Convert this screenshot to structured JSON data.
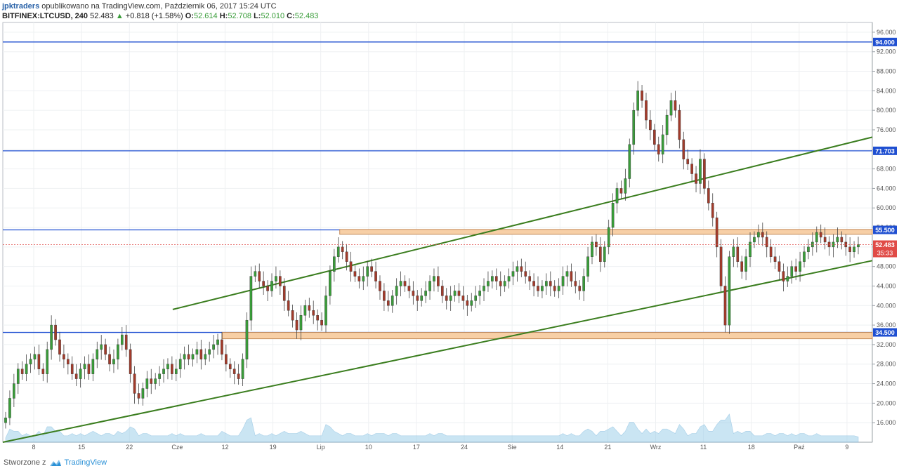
{
  "header": {
    "author": "jpktraders",
    "published_text": "opublikowano na TradingView.com, Październik 06, 2017 15:24 UTC",
    "symbol": "BITFINEX:LTCUSD, 240",
    "last_price": "52.483",
    "change_arrow": "▲",
    "change": "+0.818 (+1.58%)",
    "o_label": "O:",
    "o_value": "52.614",
    "h_label": "H:",
    "h_value": "52.708",
    "l_label": "L:",
    "l_value": "52.010",
    "c_label": "C:",
    "c_value": "52.483"
  },
  "footer": {
    "created_with": "Stworzone z",
    "brand": "TradingView",
    "logo_icon": "tradingview-logo-icon"
  },
  "colors": {
    "up": "#3a9d3a",
    "down": "#a33b2b",
    "level_line": "#1f4fd1",
    "channel": "#3a7d1e",
    "zone_fill": "#f7cfa6",
    "zone_stroke": "#c48a5a",
    "price_tag": "#e04b47"
  },
  "chart_data": {
    "type": "candlestick",
    "title": "",
    "ylim": [
      12,
      98
    ],
    "y_ticks": [
      "96.000",
      "92.000",
      "88.000",
      "84.000",
      "80.000",
      "76.000",
      "72.000",
      "68.000",
      "64.000",
      "60.000",
      "56.000",
      "52.000",
      "48.000",
      "44.000",
      "40.000",
      "36.000",
      "32.000",
      "28.000",
      "24.000",
      "20.000",
      "16.000"
    ],
    "x_ticks": [
      "8",
      "15",
      "22",
      "Cze",
      "12",
      "19",
      "Lip",
      "10",
      "17",
      "24",
      "Sie",
      "14",
      "21",
      "Wrz",
      "11",
      "18",
      "Paź",
      "9"
    ],
    "horizontal_levels": [
      {
        "label": "94.000",
        "value": 94.0
      },
      {
        "label": "71.703",
        "value": 71.703
      },
      {
        "label": "55.500",
        "value": 55.5
      },
      {
        "label": "34.500",
        "value": 34.5
      }
    ],
    "current_price": {
      "label": "52.483",
      "value": 52.483,
      "countdown": "35:33"
    },
    "zones": [
      {
        "from": 54.6,
        "to": 55.6,
        "start": "Lip"
      },
      {
        "from": 33.2,
        "to": 34.5,
        "start": "12"
      }
    ],
    "channel_lines": [
      {
        "name": "upper",
        "points": [
          [
            8.5,
            39.2
          ],
          [
            43.5,
            74.5
          ]
        ]
      },
      {
        "name": "lower",
        "points": [
          [
            0,
            12.0
          ],
          [
            43.5,
            49.2
          ]
        ]
      }
    ],
    "closes": [
      17,
      21,
      24,
      27,
      26,
      28,
      29,
      30,
      27,
      26,
      31,
      36,
      33,
      30,
      29,
      28,
      26,
      25,
      27,
      28,
      26,
      29,
      31,
      32,
      30,
      28,
      29,
      32,
      34,
      31,
      26,
      22,
      21,
      23,
      25,
      24,
      25,
      26,
      27,
      28,
      26,
      27,
      29,
      30,
      29,
      30,
      31,
      29,
      30,
      31,
      32,
      33,
      30,
      28,
      27,
      26,
      25,
      29,
      37,
      46,
      47,
      45,
      44,
      43,
      45,
      46,
      44,
      41,
      39,
      37,
      35,
      38,
      40,
      39,
      38,
      37,
      36,
      42,
      47,
      50,
      52,
      51,
      49,
      47,
      46,
      45,
      46,
      48,
      47,
      45,
      43,
      41,
      40,
      42,
      44,
      45,
      44,
      43,
      42,
      41,
      42,
      43,
      45,
      46,
      44,
      42,
      41,
      42,
      43,
      42,
      41,
      40,
      41,
      42,
      43,
      44,
      45,
      46,
      45,
      44,
      45,
      46,
      47,
      48,
      47,
      46,
      45,
      44,
      43,
      44,
      45,
      44,
      43,
      44,
      46,
      47,
      45,
      44,
      43,
      46,
      50,
      53,
      52,
      49,
      52,
      56,
      61,
      64,
      63,
      66,
      73,
      80,
      84,
      82,
      78,
      76,
      73,
      71,
      75,
      79,
      82,
      80,
      74,
      70,
      69,
      67,
      65,
      70,
      64,
      61,
      58,
      52,
      44,
      36,
      50,
      52,
      49,
      47,
      50,
      53,
      54,
      55,
      54,
      52,
      50,
      49,
      47,
      45,
      46,
      48,
      47,
      49,
      51,
      52,
      53,
      55,
      54,
      53,
      52,
      53,
      54,
      53,
      52,
      51,
      52,
      52.5
    ]
  }
}
